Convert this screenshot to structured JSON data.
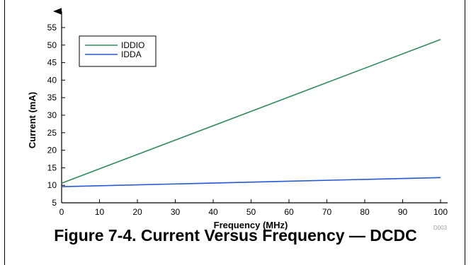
{
  "caption": "Figure 7-4. Current Versus Frequency — DCDC",
  "figure_code": "D003",
  "colors": {
    "IDDIO": "#2e8b57",
    "IDDA": "#2358d8"
  },
  "chart_data": {
    "type": "line",
    "xlabel": "Frequency (MHz)",
    "ylabel": "Current (mA)",
    "xlim": [
      0,
      100
    ],
    "ylim": [
      5,
      55
    ],
    "xticks": [
      0,
      10,
      20,
      30,
      40,
      50,
      60,
      70,
      80,
      90,
      100
    ],
    "yticks": [
      5,
      10,
      15,
      20,
      25,
      30,
      35,
      40,
      45,
      50,
      55
    ],
    "grid": false,
    "legend_position": "top-left",
    "series": [
      {
        "name": "IDDIO",
        "points": [
          [
            0,
            10.6
          ],
          [
            100,
            51.6
          ]
        ]
      },
      {
        "name": "IDDA",
        "points": [
          [
            0,
            9.6
          ],
          [
            100,
            12.2
          ]
        ]
      }
    ]
  }
}
